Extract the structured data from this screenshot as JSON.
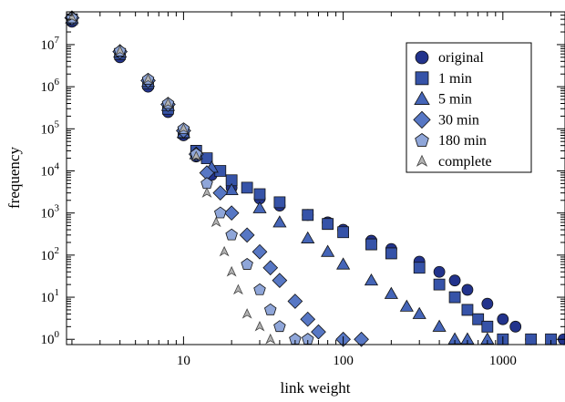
{
  "chart_data": {
    "type": "scatter",
    "title": "",
    "xlabel": "link weight",
    "ylabel": "frequency",
    "x_scale": "log",
    "y_scale": "log",
    "xlim": [
      1.85,
      2450
    ],
    "ylim": [
      0.75,
      60000000.0
    ],
    "x_ticks": [
      {
        "value": 10,
        "label": "10"
      },
      {
        "value": 100,
        "label": "100"
      },
      {
        "value": 1000,
        "label": "1000"
      }
    ],
    "y_ticks": [
      {
        "value": 1,
        "base": "10",
        "exp": "0"
      },
      {
        "value": 10,
        "base": "10",
        "exp": "1"
      },
      {
        "value": 100,
        "base": "10",
        "exp": "2"
      },
      {
        "value": 1000,
        "base": "10",
        "exp": "3"
      },
      {
        "value": 10000,
        "base": "10",
        "exp": "4"
      },
      {
        "value": 100000,
        "base": "10",
        "exp": "5"
      },
      {
        "value": 1000000,
        "base": "10",
        "exp": "6"
      },
      {
        "value": 10000000,
        "base": "10",
        "exp": "7"
      }
    ],
    "grid": false,
    "legend_position": "top-right",
    "series": [
      {
        "name": "original",
        "marker": "circle",
        "color": "#22338c",
        "points": [
          [
            2,
            35000000.0
          ],
          [
            4,
            5000000.0
          ],
          [
            6,
            1000000.0
          ],
          [
            8,
            250000.0
          ],
          [
            10,
            70000.0
          ],
          [
            12,
            22000.0
          ],
          [
            15,
            8000.0
          ],
          [
            20,
            4000.0
          ],
          [
            30,
            2200.0
          ],
          [
            40,
            1500.0
          ],
          [
            60,
            900
          ],
          [
            80,
            600
          ],
          [
            100,
            400
          ],
          [
            150,
            220
          ],
          [
            200,
            140
          ],
          [
            300,
            70
          ],
          [
            400,
            40
          ],
          [
            500,
            25
          ],
          [
            600,
            15
          ],
          [
            800,
            7
          ],
          [
            1000,
            3
          ],
          [
            1200,
            2
          ],
          [
            1500,
            1
          ],
          [
            2400,
            1
          ]
        ]
      },
      {
        "name": "1 min",
        "marker": "square",
        "color": "#3653a8",
        "points": [
          [
            2,
            40000000.0
          ],
          [
            4,
            6000000.0
          ],
          [
            6,
            1200000.0
          ],
          [
            8,
            300000.0
          ],
          [
            10,
            80000.0
          ],
          [
            12,
            30000.0
          ],
          [
            14,
            20000.0
          ],
          [
            17,
            10000.0
          ],
          [
            20,
            6000.0
          ],
          [
            25,
            4000.0
          ],
          [
            30,
            2800.0
          ],
          [
            40,
            1800.0
          ],
          [
            60,
            900
          ],
          [
            80,
            550
          ],
          [
            100,
            350
          ],
          [
            150,
            180
          ],
          [
            200,
            110
          ],
          [
            300,
            50
          ],
          [
            400,
            20
          ],
          [
            500,
            10
          ],
          [
            600,
            5
          ],
          [
            700,
            3
          ],
          [
            800,
            2
          ],
          [
            1000,
            1
          ],
          [
            1500,
            1
          ],
          [
            2000,
            1
          ]
        ]
      },
      {
        "name": "5 min",
        "marker": "triangle",
        "color": "#4565b8",
        "points": [
          [
            2,
            42000000.0
          ],
          [
            4,
            6500000.0
          ],
          [
            6,
            1300000.0
          ],
          [
            8,
            350000.0
          ],
          [
            10,
            80000.0
          ],
          [
            12,
            25000.0
          ],
          [
            15,
            12000.0
          ],
          [
            20,
            3500.0
          ],
          [
            30,
            1300.0
          ],
          [
            40,
            600
          ],
          [
            60,
            250
          ],
          [
            80,
            120
          ],
          [
            100,
            60
          ],
          [
            150,
            25
          ],
          [
            200,
            12
          ],
          [
            250,
            6
          ],
          [
            300,
            4
          ],
          [
            400,
            2
          ],
          [
            500,
            1
          ],
          [
            600,
            1
          ],
          [
            800,
            1
          ]
        ]
      },
      {
        "name": "30 min",
        "marker": "diamond",
        "color": "#5777c4",
        "points": [
          [
            2,
            43000000.0
          ],
          [
            4,
            6800000.0
          ],
          [
            6,
            1400000.0
          ],
          [
            8,
            380000.0
          ],
          [
            10,
            90000.0
          ],
          [
            12,
            25000.0
          ],
          [
            14,
            9000.0
          ],
          [
            17,
            3000.0
          ],
          [
            20,
            1000.0
          ],
          [
            25,
            300
          ],
          [
            30,
            120
          ],
          [
            35,
            50
          ],
          [
            40,
            25
          ],
          [
            50,
            8
          ],
          [
            60,
            3
          ],
          [
            70,
            1.5
          ],
          [
            100,
            1
          ],
          [
            130,
            1
          ]
        ]
      },
      {
        "name": "180 min",
        "marker": "pentagon",
        "color": "#8fa6d9",
        "points": [
          [
            2,
            43000000.0
          ],
          [
            4,
            7000000.0
          ],
          [
            6,
            1500000.0
          ],
          [
            8,
            400000.0
          ],
          [
            10,
            100000.0
          ],
          [
            12,
            25000.0
          ],
          [
            14,
            5000.0
          ],
          [
            17,
            1000.0
          ],
          [
            20,
            300
          ],
          [
            25,
            60
          ],
          [
            30,
            15
          ],
          [
            35,
            5
          ],
          [
            40,
            2
          ],
          [
            50,
            1
          ],
          [
            60,
            1
          ]
        ]
      },
      {
        "name": "complete",
        "marker": "tri-down",
        "color": "#b3b3b3",
        "points": [
          [
            2,
            44000000.0
          ],
          [
            4,
            7000000.0
          ],
          [
            6,
            1500000.0
          ],
          [
            8,
            400000.0
          ],
          [
            10,
            100000.0
          ],
          [
            12,
            22000.0
          ],
          [
            14,
            3000.0
          ],
          [
            16,
            600
          ],
          [
            18,
            120
          ],
          [
            20,
            40
          ],
          [
            22,
            15
          ],
          [
            25,
            4
          ],
          [
            30,
            2
          ],
          [
            35,
            1
          ]
        ]
      }
    ]
  }
}
